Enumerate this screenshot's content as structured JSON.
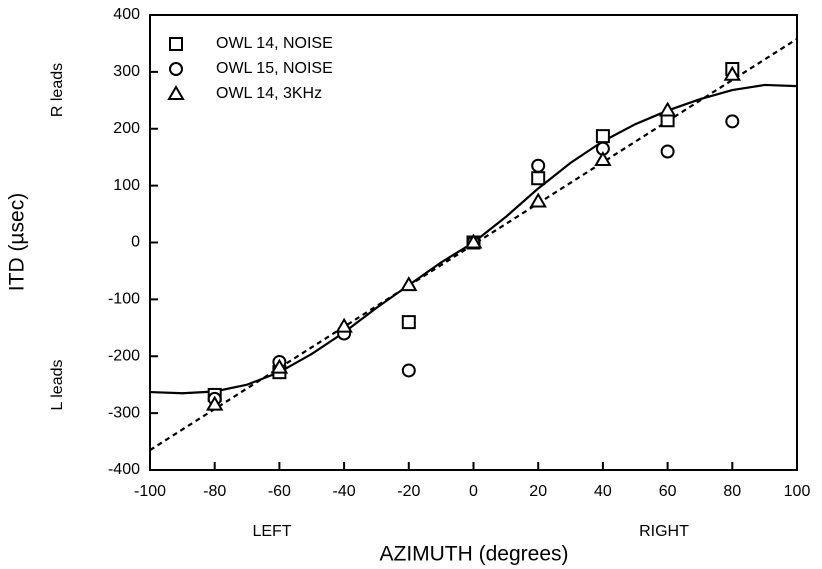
{
  "chart_data": {
    "type": "scatter",
    "x_label": "AZIMUTH (degrees)",
    "y_label": "ITD (µsec)",
    "annotations": {
      "top_left": "R leads",
      "bottom_left": "L leads",
      "left": "LEFT",
      "right": "RIGHT"
    },
    "xlim": [
      -100,
      100
    ],
    "xticks": [
      -100,
      -80,
      -60,
      -40,
      -20,
      0,
      20,
      40,
      60,
      80,
      100
    ],
    "ylim": [
      -400,
      400
    ],
    "yticks": [
      -400,
      -300,
      -200,
      -100,
      0,
      100,
      200,
      300,
      400
    ],
    "legend": "upper left",
    "series": [
      {
        "name": "OWL 14, NOISE",
        "marker": "square",
        "color": "#000000",
        "x": [
          -80,
          -60,
          -20,
          0,
          20,
          40,
          60,
          80
        ],
        "values": [
          -268,
          -228,
          -140,
          0,
          113,
          187,
          215,
          305
        ]
      },
      {
        "name": "OWL 15, NOISE",
        "marker": "circle",
        "color": "#000000",
        "x": [
          -80,
          -60,
          -40,
          -20,
          0,
          20,
          40,
          60,
          80
        ],
        "values": [
          -275,
          -210,
          -160,
          -225,
          0,
          135,
          165,
          160,
          213
        ]
      },
      {
        "name": "OWL 14, 3KHz",
        "marker": "triangle",
        "color": "#000000",
        "x": [
          -80,
          -60,
          -40,
          -20,
          0,
          20,
          40,
          60,
          80
        ],
        "values": [
          -285,
          -220,
          -148,
          -75,
          0,
          72,
          145,
          232,
          295
        ]
      }
    ],
    "lines": [
      {
        "style": "dashed",
        "color": "#000000",
        "x": [
          -100,
          100
        ],
        "values": [
          -365,
          358
        ]
      },
      {
        "style": "solid",
        "color": "#000000",
        "x": [
          -100,
          -90,
          -80,
          -70,
          -60,
          -50,
          -40,
          -30,
          -20,
          -10,
          0,
          10,
          20,
          30,
          40,
          50,
          60,
          70,
          80,
          90,
          100
        ],
        "values": [
          -263,
          -265,
          -262,
          -250,
          -228,
          -196,
          -158,
          -115,
          -75,
          -35,
          0,
          45,
          95,
          140,
          178,
          208,
          232,
          252,
          268,
          277,
          275
        ]
      }
    ]
  }
}
